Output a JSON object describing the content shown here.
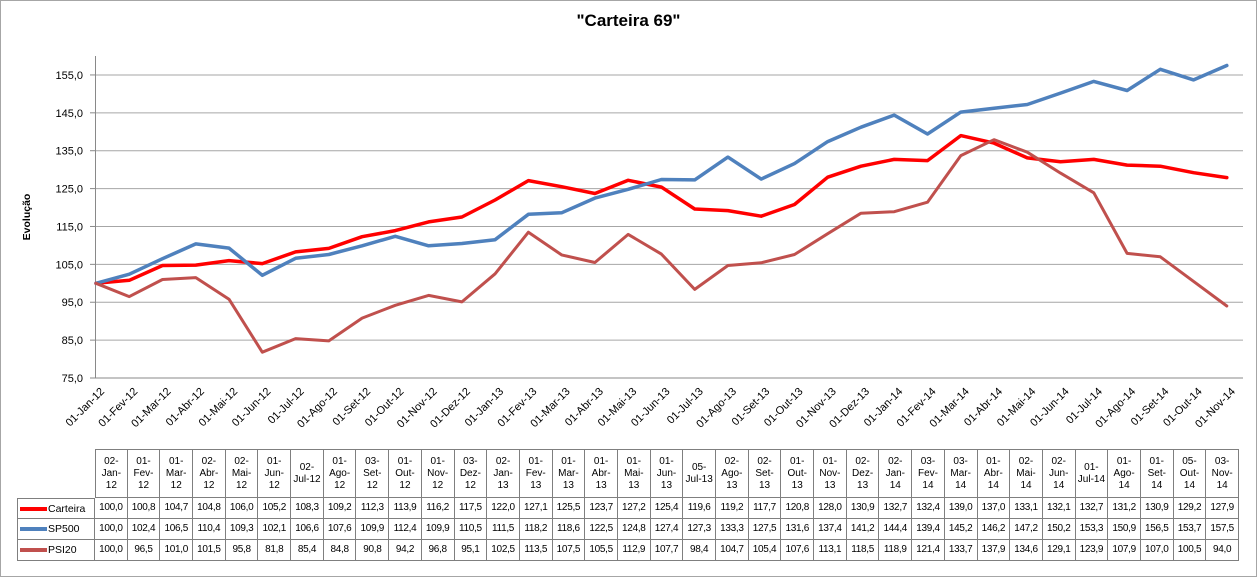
{
  "title": "\"Carteira 69\"",
  "chart_data": {
    "type": "line",
    "title": "\"Carteira 69\"",
    "ylabel": "Evolução",
    "xlabel": "",
    "ylim": [
      75,
      160
    ],
    "yticks": [
      75,
      85,
      95,
      105,
      115,
      125,
      135,
      145,
      155
    ],
    "grid": true,
    "legend_position": "table-left",
    "decimal_separator": ",",
    "x": [
      "01-Jan-12",
      "01-Fev-12",
      "01-Mar-12",
      "01-Abr-12",
      "01-Mai-12",
      "01-Jun-12",
      "01-Jul-12",
      "01-Ago-12",
      "01-Set-12",
      "01-Out-12",
      "01-Nov-12",
      "01-Dez-12",
      "01-Jan-13",
      "01-Fev-13",
      "01-Mar-13",
      "01-Abr-13",
      "01-Mai-13",
      "01-Jun-13",
      "01-Jul-13",
      "01-Ago-13",
      "01-Set-13",
      "01-Out-13",
      "01-Nov-13",
      "01-Dez-13",
      "01-Jan-14",
      "01-Fev-14",
      "01-Mar-14",
      "01-Abr-14",
      "01-Mai-14",
      "01-Jun-14",
      "01-Jul-14",
      "01-Ago-14",
      "01-Set-14",
      "01-Out-14",
      "01-Nov-14"
    ],
    "series": [
      {
        "name": "Carteira",
        "color": "#FF0000",
        "values": [
          100.0,
          100.8,
          104.7,
          104.8,
          106.0,
          105.2,
          108.3,
          109.2,
          112.3,
          113.9,
          116.2,
          117.5,
          122.0,
          127.1,
          125.5,
          123.7,
          127.2,
          125.4,
          119.6,
          119.2,
          117.7,
          120.8,
          128.0,
          130.9,
          132.7,
          132.4,
          139.0,
          137.0,
          133.1,
          132.1,
          132.7,
          131.2,
          130.9,
          129.2,
          127.9
        ]
      },
      {
        "name": "SP500",
        "color": "#4F81BD",
        "values": [
          100.0,
          102.4,
          106.5,
          110.4,
          109.3,
          102.1,
          106.6,
          107.6,
          109.9,
          112.4,
          109.9,
          110.5,
          111.5,
          118.2,
          118.6,
          122.5,
          124.8,
          127.4,
          127.3,
          133.3,
          127.5,
          131.6,
          137.4,
          141.2,
          144.4,
          139.4,
          145.2,
          146.2,
          147.2,
          150.2,
          153.3,
          150.9,
          156.5,
          153.7,
          157.5
        ]
      },
      {
        "name": "PSI20",
        "color": "#C0504D",
        "values": [
          100.0,
          96.5,
          101.0,
          101.5,
          95.8,
          81.8,
          85.4,
          84.8,
          90.8,
          94.2,
          96.8,
          95.1,
          102.5,
          113.5,
          107.5,
          105.5,
          112.9,
          107.7,
          98.4,
          104.7,
          105.4,
          107.6,
          113.1,
          118.5,
          118.9,
          121.4,
          133.7,
          137.9,
          134.6,
          129.1,
          123.9,
          107.9,
          107.0,
          100.5,
          94.0
        ]
      }
    ]
  },
  "table": {
    "headers": [
      "02-\nJan-\n12",
      "01-\nFev-\n12",
      "01-\nMar-\n12",
      "02-\nAbr-\n12",
      "02-\nMai-\n12",
      "01-\nJun-\n12",
      "02-\nJul-12",
      "01-\nAgo-\n12",
      "03-\nSet-\n12",
      "01-\nOut-\n12",
      "01-\nNov-\n12",
      "03-\nDez-\n12",
      "02-\nJan-\n13",
      "01-\nFev-\n13",
      "01-\nMar-\n13",
      "01-\nAbr-\n13",
      "01-\nMai-\n13",
      "01-\nJun-\n13",
      "05-\nJul-13",
      "02-\nAgo-\n13",
      "02-\nSet-\n13",
      "01-\nOut-\n13",
      "01-\nNov-\n13",
      "02-\nDez-\n13",
      "02-\nJan-\n14",
      "03-\nFev-\n14",
      "03-\nMar-\n14",
      "01-\nAbr-\n14",
      "02-\nMai-\n14",
      "02-\nJun-\n14",
      "01-\nJul-14",
      "01-\nAgo-\n14",
      "01-\nSet-\n14",
      "05-\nOut-\n14",
      "03-\nNov-\n14"
    ]
  },
  "colors": {
    "carteira": "#FF0000",
    "sp500": "#4F81BD",
    "psi20": "#C0504D",
    "gridline": "#a6a6a6",
    "axis": "#898989",
    "table_border": "#7f7f7f",
    "text": "#000000"
  }
}
